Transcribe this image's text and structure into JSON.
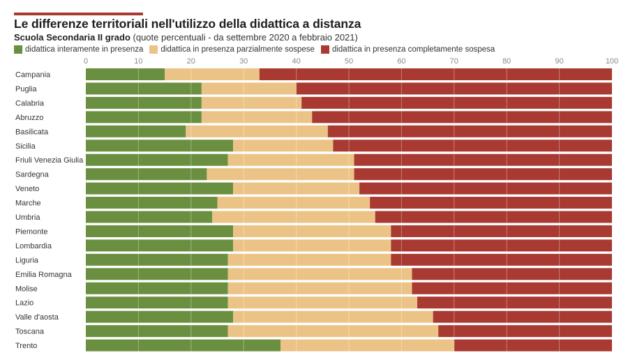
{
  "header": {
    "title": "Le differenze territoriali nell'utilizzo della didattica a distanza",
    "subtitle_bold": "Scuola Secondaria II grado",
    "subtitle_rest": "(quote percentuali - da settembre 2020 a febbraio 2021)"
  },
  "colors": {
    "accent": "#a83a32",
    "green": "#6a8f40",
    "yellow": "#ecc386",
    "red": "#a83a32"
  },
  "chart_data": {
    "type": "bar",
    "orientation": "horizontal",
    "stacked": true,
    "title": "Le differenze territoriali nell'utilizzo della didattica a distanza",
    "subtitle": "Scuola Secondaria II grado (quote percentuali - da settembre 2020 a febbraio 2021)",
    "xlabel": "",
    "ylabel": "",
    "xlim": [
      0,
      100
    ],
    "xticks": [
      0,
      10,
      20,
      30,
      40,
      50,
      60,
      70,
      80,
      90,
      100
    ],
    "grid": true,
    "legend_position": "top-left",
    "categories": [
      "Campania",
      "Puglia",
      "Calabria",
      "Abruzzo",
      "Basilicata",
      "Sicilia",
      "Friuli Venezia Giulia",
      "Sardegna",
      "Veneto",
      "Marche",
      "Umbria",
      "Piemonte",
      "Lombardia",
      "Liguria",
      "Emilia Romagna",
      "Molise",
      "Lazio",
      "Valle d'aosta",
      "Toscana",
      "Trento"
    ],
    "series": [
      {
        "name": "didattica interamente in presenza",
        "color": "#6a8f40",
        "values": [
          15,
          22,
          22,
          22,
          19,
          28,
          27,
          23,
          28,
          25,
          24,
          28,
          28,
          27,
          27,
          27,
          27,
          28,
          27,
          37
        ]
      },
      {
        "name": "didattica in presenza parzialmente sospese",
        "color": "#ecc386",
        "values": [
          18,
          18,
          19,
          21,
          27,
          19,
          24,
          28,
          24,
          29,
          31,
          30,
          30,
          31,
          35,
          35,
          36,
          38,
          40,
          33
        ]
      },
      {
        "name": "didattica in presenza completamente sospesa",
        "color": "#a83a32",
        "values": [
          67,
          60,
          59,
          57,
          54,
          53,
          49,
          49,
          48,
          46,
          45,
          42,
          42,
          42,
          38,
          38,
          37,
          34,
          33,
          30
        ]
      }
    ]
  }
}
